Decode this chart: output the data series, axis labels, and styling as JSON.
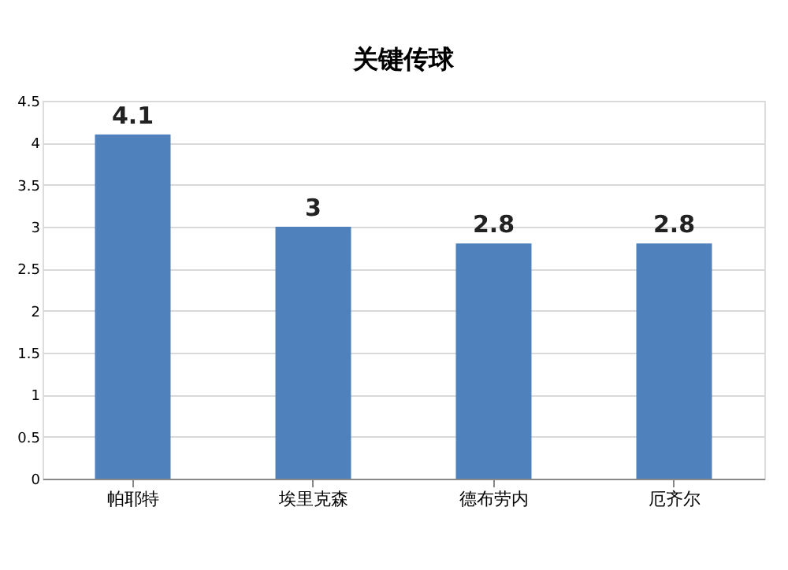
{
  "chart_data": {
    "type": "bar",
    "title": "关键传球",
    "categories": [
      "帕耶特",
      "埃里克森",
      "德布劳内",
      "厄齐尔"
    ],
    "values": [
      4.1,
      3,
      2.8,
      2.8
    ],
    "color": "#4f81bd",
    "ylim": [
      0,
      4.5
    ],
    "yticks": [
      0,
      0.5,
      1,
      1.5,
      2,
      2.5,
      3,
      3.5,
      4,
      4.5
    ],
    "grid": "y",
    "data_labels": true
  }
}
